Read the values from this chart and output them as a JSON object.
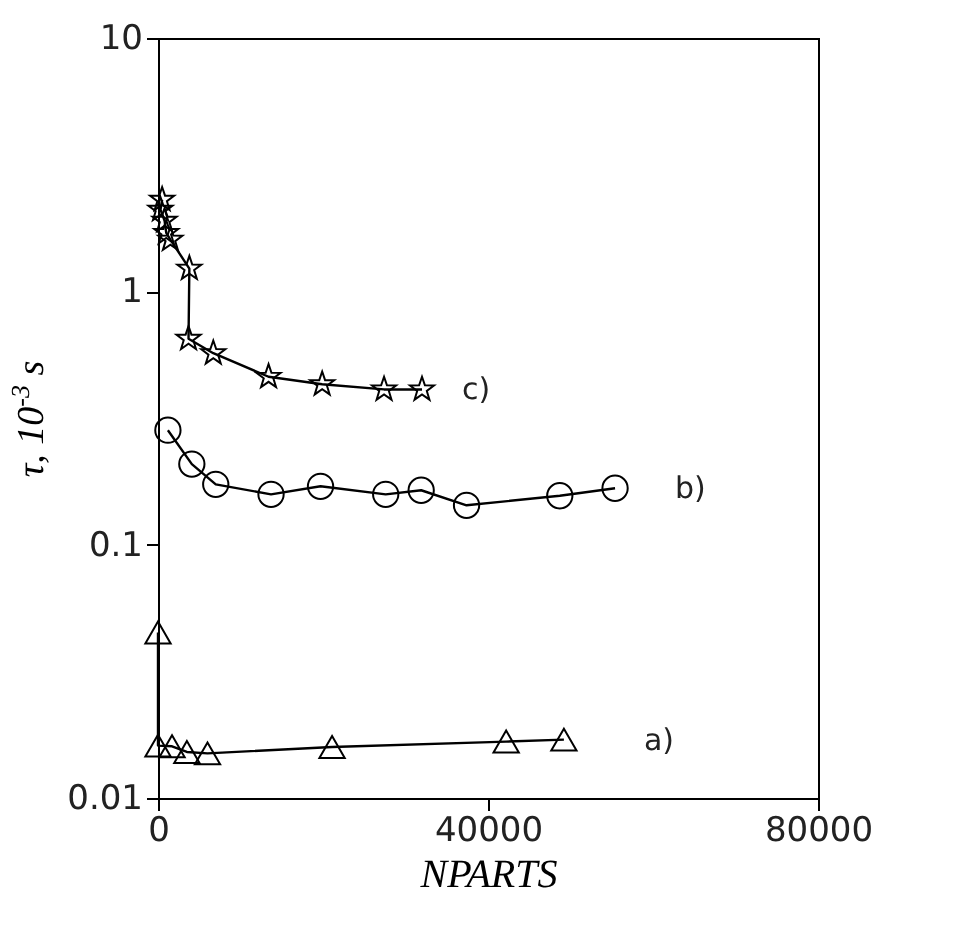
{
  "chart_data": {
    "type": "line",
    "xlabel": "NPARTS",
    "ylabel": "τ, 10$^{-3}$ s",
    "log": "y",
    "xlim": [
      0,
      80000
    ],
    "xticks": [
      0,
      40000,
      80000
    ],
    "ylim": [
      0.01,
      10
    ],
    "yticks": [
      0.01,
      0.1,
      1,
      10
    ],
    "grid": false,
    "line_style": "solid",
    "series": [
      {
        "color": "#000000",
        "marker": "star",
        "x": [
          500,
          300,
          800,
          1000,
          1500,
          3800,
          3700,
          6700,
          13400,
          19900,
          27400,
          32000
        ],
        "values": [
          2.3,
          2.1,
          1.9,
          1.7,
          1.6,
          1.23,
          0.65,
          0.57,
          0.46,
          0.43,
          0.41,
          0.41
        ]
      },
      {
        "color": "#000000",
        "marker": "circle",
        "x": [
          1200,
          4100,
          7000,
          13700,
          19700,
          27600,
          31900,
          37400,
          48700,
          55400
        ],
        "values": [
          0.283,
          0.208,
          0.173,
          0.158,
          0.17,
          0.158,
          0.164,
          0.143,
          0.156,
          0.167
        ]
      },
      {
        "color": "#000000",
        "marker": "triangle",
        "x": [
          0,
          0,
          1700,
          3500,
          6000,
          21100,
          42200,
          49200
        ],
        "values": [
          0.045,
          0.0161,
          0.016,
          0.0152,
          0.015,
          0.0159,
          0.0167,
          0.017
        ]
      }
    ],
    "annotations": [
      "c)",
      "b)",
      "a)"
    ]
  }
}
